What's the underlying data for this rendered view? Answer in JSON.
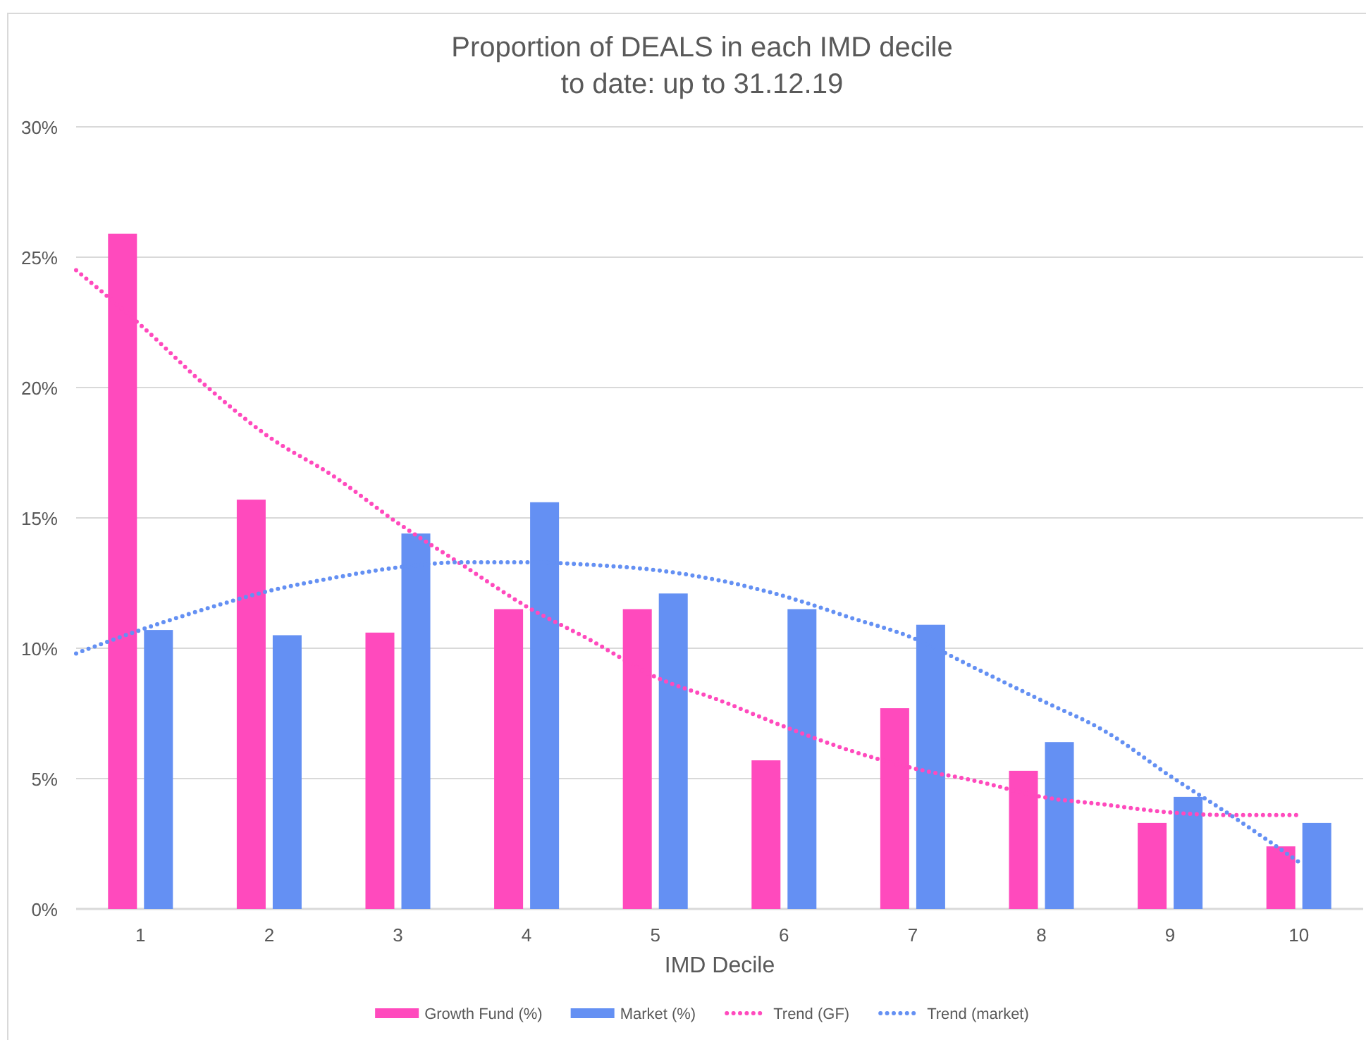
{
  "chart_data": {
    "type": "bar",
    "title": "Proportion of DEALS in each IMD decile",
    "subtitle": "to date: up to 31.12.19",
    "xlabel": "IMD Decile",
    "x": [
      1,
      2,
      3,
      4,
      5,
      6,
      7,
      8,
      9,
      10
    ],
    "xlim": [
      0.5,
      10.5
    ],
    "xticks": [
      1,
      2,
      3,
      4,
      5,
      6,
      7,
      8,
      9,
      10
    ],
    "ylim": [
      0,
      30
    ],
    "yticks": [
      {
        "value": 0,
        "label": "0%"
      },
      {
        "value": 5,
        "label": "5%"
      },
      {
        "value": 10,
        "label": "10%"
      },
      {
        "value": 15,
        "label": "15%"
      },
      {
        "value": 20,
        "label": "20%"
      },
      {
        "value": 25,
        "label": "25%"
      },
      {
        "value": 30,
        "label": "30%"
      }
    ],
    "grid": "y",
    "legend": "bottom",
    "series": [
      {
        "name": "Growth Fund (%)",
        "color": "#ff4abd",
        "values": [
          25.9,
          15.7,
          10.6,
          11.5,
          11.5,
          5.7,
          7.7,
          5.3,
          3.3,
          2.4
        ]
      },
      {
        "name": "Market (%)",
        "color": "#6490f3",
        "values": [
          10.7,
          10.5,
          14.4,
          15.6,
          12.1,
          11.5,
          10.9,
          6.4,
          4.3,
          3.3
        ]
      },
      {
        "name": "Trend (GF)",
        "type": "line",
        "line_style": "dotted",
        "color": "#ff4abd",
        "x": [
          0.5,
          1,
          1.5,
          2,
          2.5,
          3,
          3.5,
          4,
          4.5,
          5,
          5.5,
          6,
          6.5,
          7,
          7.5,
          8,
          8.5,
          9,
          9.5,
          10
        ],
        "values": [
          24.5,
          22.4,
          20.1,
          18.1,
          16.6,
          14.8,
          13.2,
          11.6,
          10.3,
          8.9,
          8.0,
          7.0,
          6.1,
          5.4,
          4.9,
          4.3,
          4.0,
          3.7,
          3.6,
          3.6
        ]
      },
      {
        "name": "Trend (market)",
        "type": "line",
        "line_style": "dotted",
        "color": "#6490f3",
        "x": [
          0.5,
          1,
          1.5,
          2,
          2.5,
          3,
          3.5,
          4,
          4.5,
          5,
          5.5,
          6,
          6.5,
          7,
          7.5,
          8,
          8.5,
          9,
          9.5,
          10
        ],
        "values": [
          9.8,
          10.7,
          11.5,
          12.2,
          12.7,
          13.1,
          13.3,
          13.3,
          13.2,
          13.0,
          12.6,
          12.0,
          11.2,
          10.4,
          9.2,
          8.0,
          6.8,
          5.1,
          3.5,
          1.8
        ]
      }
    ]
  }
}
